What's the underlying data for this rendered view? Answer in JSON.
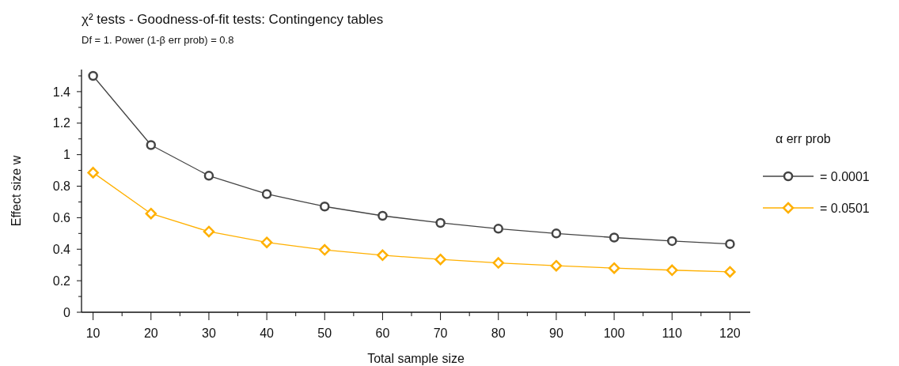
{
  "chart_data": {
    "type": "line",
    "title": "χ² tests - Goodness-of-fit tests: Contingency tables",
    "subtitle": "Df = 1. Power (1-β err prob) = 0.8",
    "xlabel": "Total sample size",
    "ylabel": "Effect size w",
    "legend_title": "α err prob",
    "legend": "right",
    "x": [
      10,
      20,
      30,
      40,
      50,
      60,
      70,
      80,
      90,
      100,
      110,
      120
    ],
    "series": [
      {
        "name": "= 0.0001",
        "color": "#444444",
        "marker": "circle",
        "values": [
          1.5,
          1.061,
          0.866,
          0.75,
          0.671,
          0.612,
          0.567,
          0.53,
          0.5,
          0.474,
          0.452,
          0.433
        ]
      },
      {
        "name": "= 0.0501",
        "color": "#ffb000",
        "marker": "diamond",
        "values": [
          0.886,
          0.626,
          0.512,
          0.443,
          0.396,
          0.362,
          0.335,
          0.313,
          0.295,
          0.28,
          0.267,
          0.256
        ]
      }
    ],
    "xlim": [
      8,
      123.5
    ],
    "xticks": [
      10,
      {
        "value": 15,
        "label": null
      },
      20,
      {
        "value": 25,
        "label": null
      },
      30,
      {
        "value": 35,
        "label": null
      },
      40,
      {
        "value": 45,
        "label": null
      },
      50,
      {
        "value": 55,
        "label": null
      },
      60,
      {
        "value": 65,
        "label": null
      },
      70,
      {
        "value": 75,
        "label": null
      },
      80,
      {
        "value": 85,
        "label": null
      },
      90,
      {
        "value": 95,
        "label": null
      },
      100,
      {
        "value": 105,
        "label": null
      },
      110,
      {
        "value": 115,
        "label": null
      },
      120
    ],
    "ylim": [
      0,
      1.54
    ],
    "yticks": [
      0,
      {
        "value": 0.1,
        "label": null
      },
      0.2,
      {
        "value": 0.3,
        "label": null
      },
      0.4,
      {
        "value": 0.5,
        "label": null
      },
      0.6,
      {
        "value": 0.7,
        "label": null
      },
      0.8,
      {
        "value": 0.9,
        "label": null
      },
      1,
      {
        "value": 1.1,
        "label": null
      },
      1.2,
      {
        "value": 1.3,
        "label": null
      },
      1.4,
      {
        "value": 1.5,
        "label": null
      }
    ],
    "grid": false
  }
}
